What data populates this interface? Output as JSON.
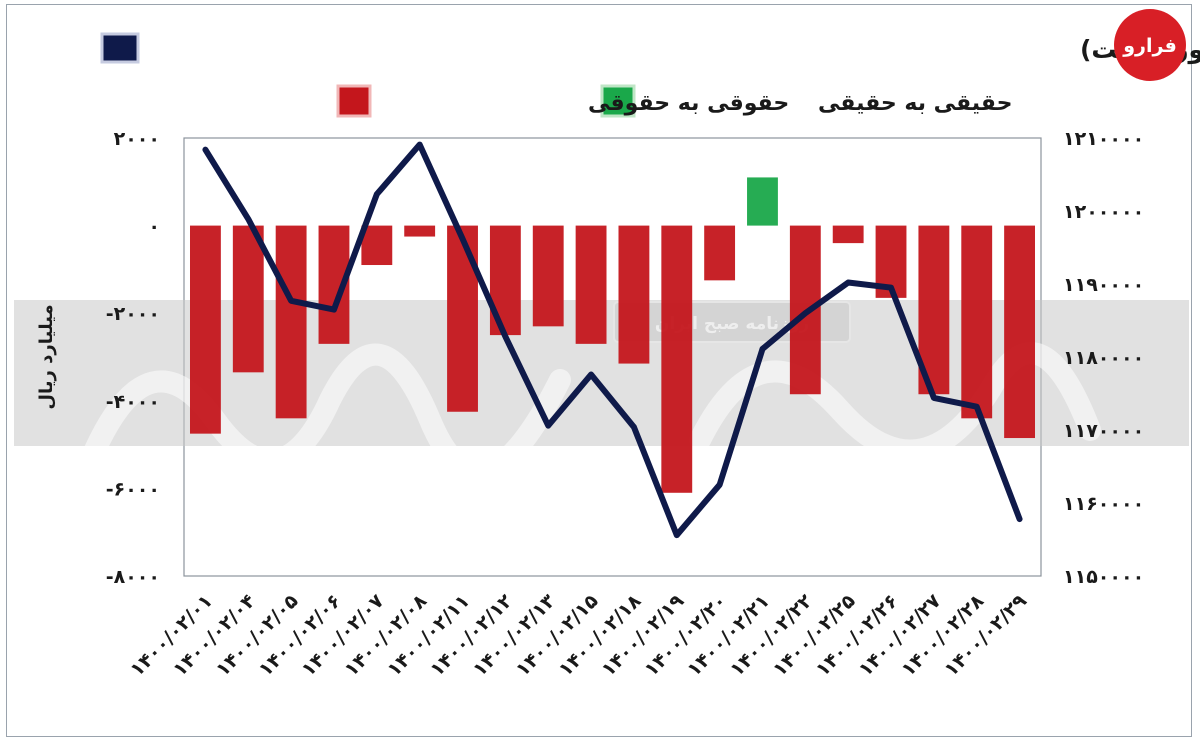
{
  "chart_data": {
    "type": "bar+line",
    "title": "تغییر مالکیت میان سهامداران (محور چپ) و شاخص کل (محور راست)",
    "legend": [
      {
        "label": "تغییر مالکیت میان سهامداران (محور چپ) و شاخص کل (محور راست)",
        "color": "#0f1a4a",
        "kind": "line"
      },
      {
        "label": "حقیقی به حقیقی",
        "color": "#1aa84a",
        "kind": "bar"
      },
      {
        "label": "حقوقی به حقوقی",
        "color": "#c4161c",
        "kind": "bar"
      }
    ],
    "ylabel_left": "میلیارد ریال",
    "ylim_left": [
      -8000,
      2000
    ],
    "yticks_left": [
      {
        "value": 2000,
        "label": "۲۰۰۰"
      },
      {
        "value": 0,
        "label": "۰"
      },
      {
        "value": -2000,
        "label": "-۲۰۰۰"
      },
      {
        "value": -4000,
        "label": "-۴۰۰۰"
      },
      {
        "value": -6000,
        "label": "-۶۰۰۰"
      },
      {
        "value": -8000,
        "label": "-۸۰۰۰"
      }
    ],
    "ylim_right": [
      1150000,
      1210000
    ],
    "yticks_right": [
      {
        "value": 1210000,
        "label": "۱۲۱۰۰۰۰"
      },
      {
        "value": 1200000,
        "label": "۱۲۰۰۰۰۰"
      },
      {
        "value": 1190000,
        "label": "۱۱۹۰۰۰۰"
      },
      {
        "value": 1180000,
        "label": "۱۱۸۰۰۰۰"
      },
      {
        "value": 1170000,
        "label": "۱۱۷۰۰۰۰"
      },
      {
        "value": 1160000,
        "label": "۱۱۶۰۰۰۰"
      },
      {
        "value": 1150000,
        "label": "۱۱۵۰۰۰۰"
      }
    ],
    "categories": [
      "۱۴۰۰/۰۲/۰۱",
      "۱۴۰۰/۰۲/۰۴",
      "۱۴۰۰/۰۲/۰۵",
      "۱۴۰۰/۰۲/۰۶",
      "۱۴۰۰/۰۲/۰۷",
      "۱۴۰۰/۰۲/۰۸",
      "۱۴۰۰/۰۲/۱۱",
      "۱۴۰۰/۰۲/۱۲",
      "۱۴۰۰/۰۲/۱۳",
      "۱۴۰۰/۰۲/۱۵",
      "۱۴۰۰/۰۲/۱۸",
      "۱۴۰۰/۰۲/۱۹",
      "۱۴۰۰/۰۲/۲۰",
      "۱۴۰۰/۰۲/۲۱",
      "۱۴۰۰/۰۲/۲۲",
      "۱۴۰۰/۰۲/۲۵",
      "۱۴۰۰/۰۲/۲۶",
      "۱۴۰۰/۰۲/۲۷",
      "۱۴۰۰/۰۲/۲۸",
      "۱۴۰۰/۰۲/۲۹"
    ],
    "bar_series": [
      {
        "name": "حقوقی به حقوقی",
        "color": "#c4161c",
        "values": [
          -4750,
          -3350,
          -4400,
          -2700,
          -900,
          -250,
          -4250,
          -2500,
          -2300,
          -2700,
          -3150,
          -6100,
          -1250,
          0,
          -3850,
          -400,
          -1650,
          -3850,
          -4400,
          -4850
        ]
      },
      {
        "name": "حقیقی به حقیقی",
        "color": "#1aa84a",
        "values": [
          0,
          0,
          0,
          0,
          0,
          0,
          0,
          0,
          0,
          0,
          0,
          0,
          0,
          1100,
          0,
          0,
          0,
          0,
          0,
          0
        ]
      }
    ],
    "line_series": {
      "name": "تغییر مالکیت میان سهامداران (محور چپ) و شاخص کل (محور راست)",
      "color": "#0f1a4a",
      "values": [
        1208400,
        1198900,
        1187700,
        1186500,
        1202300,
        1209100,
        1196200,
        1182800,
        1170600,
        1177600,
        1170400,
        1155600,
        1162500,
        1181100,
        1186000,
        1190200,
        1189500,
        1174400,
        1173200,
        1157800
      ]
    }
  },
  "watermark": {
    "badge_text": "روزنامه صبح ایران",
    "logo_text": "فرارو"
  }
}
